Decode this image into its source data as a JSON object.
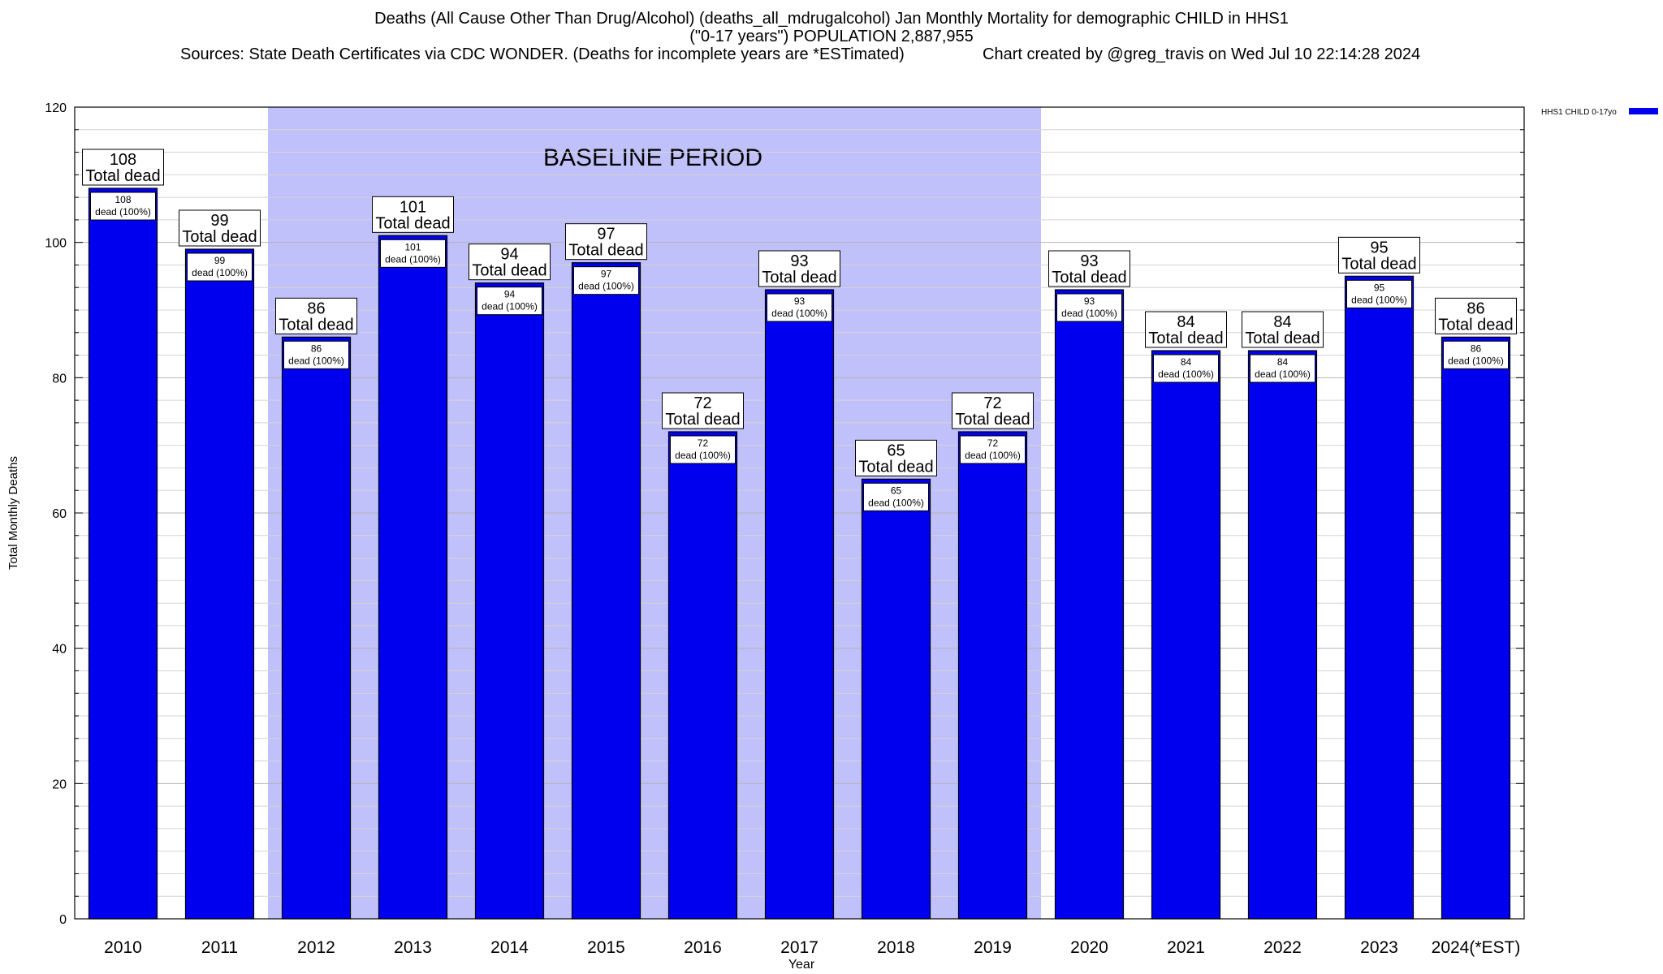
{
  "header": {
    "title_line1": "Deaths (All Cause Other Than Drug/Alcohol) (deaths_all_mdrugalcohol) Jan Monthly Mortality for demographic CHILD in HHS1",
    "title_line2": "(\"0-17 years\") POPULATION 2,887,955",
    "sources": "Sources: State Death Certificates via CDC WONDER. (Deaths for incomplete years are *ESTimated)",
    "credit": "Chart created by @greg_travis on Wed Jul 10 22:14:28 2024"
  },
  "chart_data": {
    "type": "bar",
    "title": "Deaths (All Cause Other Than Drug/Alcohol) (deaths_all_mdrugalcohol) Jan Monthly Mortality for demographic CHILD in HHS1",
    "xlabel": "Year",
    "ylabel": "Total Monthly Deaths",
    "ylim": [
      0,
      120
    ],
    "yticks": [
      0,
      20,
      40,
      60,
      80,
      100,
      120
    ],
    "categories": [
      "2010",
      "2011",
      "2012",
      "2013",
      "2014",
      "2015",
      "2016",
      "2017",
      "2018",
      "2019",
      "2020",
      "2021",
      "2022",
      "2023",
      "2024(*EST)"
    ],
    "series": [
      {
        "name": "HHS1 CHILD 0-17yo",
        "color": "#0000ee",
        "values": [
          108,
          99,
          86,
          101,
          94,
          97,
          72,
          93,
          65,
          72,
          93,
          84,
          84,
          95,
          86
        ]
      }
    ],
    "total_label_suffix": "Total dead",
    "inner_label_suffix": "dead (100%)",
    "baseline": {
      "label": "BASELINE PERIOD",
      "start": "2012",
      "end": "2019",
      "color": "#c0c0fa"
    },
    "legend_position": "top-right",
    "grid": true
  }
}
